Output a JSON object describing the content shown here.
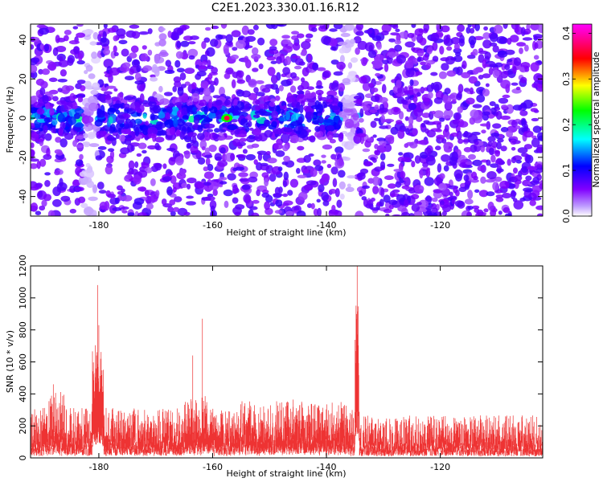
{
  "title": "C2E1.2023.330.01.16.R12",
  "chart_data": [
    {
      "type": "heatmap",
      "xlabel": "Height of straight line (km)",
      "ylabel": "Frequency (Hz)",
      "xlim": [
        -192,
        -102
      ],
      "ylim": [
        -50,
        48
      ],
      "xticks": [
        -180,
        -160,
        -140,
        -120
      ],
      "yticks": [
        -40,
        -20,
        0,
        20,
        40
      ],
      "colorbar": {
        "label": "Normalized spectral amplitude",
        "range": [
          0,
          0.42
        ],
        "ticks": [
          0.0,
          0.1,
          0.2,
          0.3,
          0.4
        ],
        "colormap": [
          "#ffffff",
          "#8000ff",
          "#0000ff",
          "#00ffff",
          "#00ff00",
          "#ffff00",
          "#ff0000",
          "#ff00ff"
        ]
      },
      "features": {
        "signal_band_center_hz": 0,
        "signal_band_extent_km": [
          -192,
          -134
        ],
        "peak_amplitude": 0.42,
        "peak_location": {
          "x": -157.5,
          "y": 0
        },
        "gaps_km": [
          -181.5,
          -136
        ]
      }
    },
    {
      "type": "line",
      "xlabel": "Height of straight line (km)",
      "ylabel": "SNR (10 * v/v)",
      "xlim": [
        -192,
        -102
      ],
      "ylim": [
        0,
        1200
      ],
      "xticks": [
        -180,
        -160,
        -140,
        -120
      ],
      "yticks": [
        0,
        200,
        400,
        600,
        800,
        1000,
        1200
      ],
      "color": "#ee3333",
      "baseline_range": [
        50,
        300
      ],
      "peaks": [
        {
          "x": -180.2,
          "y": 1080
        },
        {
          "x": -180.0,
          "y": 830
        },
        {
          "x": -161.8,
          "y": 870
        },
        {
          "x": -163.5,
          "y": 640
        },
        {
          "x": -134.6,
          "y": 1200
        },
        {
          "x": -134.8,
          "y": 920
        },
        {
          "x": -188.0,
          "y": 460
        }
      ]
    }
  ]
}
